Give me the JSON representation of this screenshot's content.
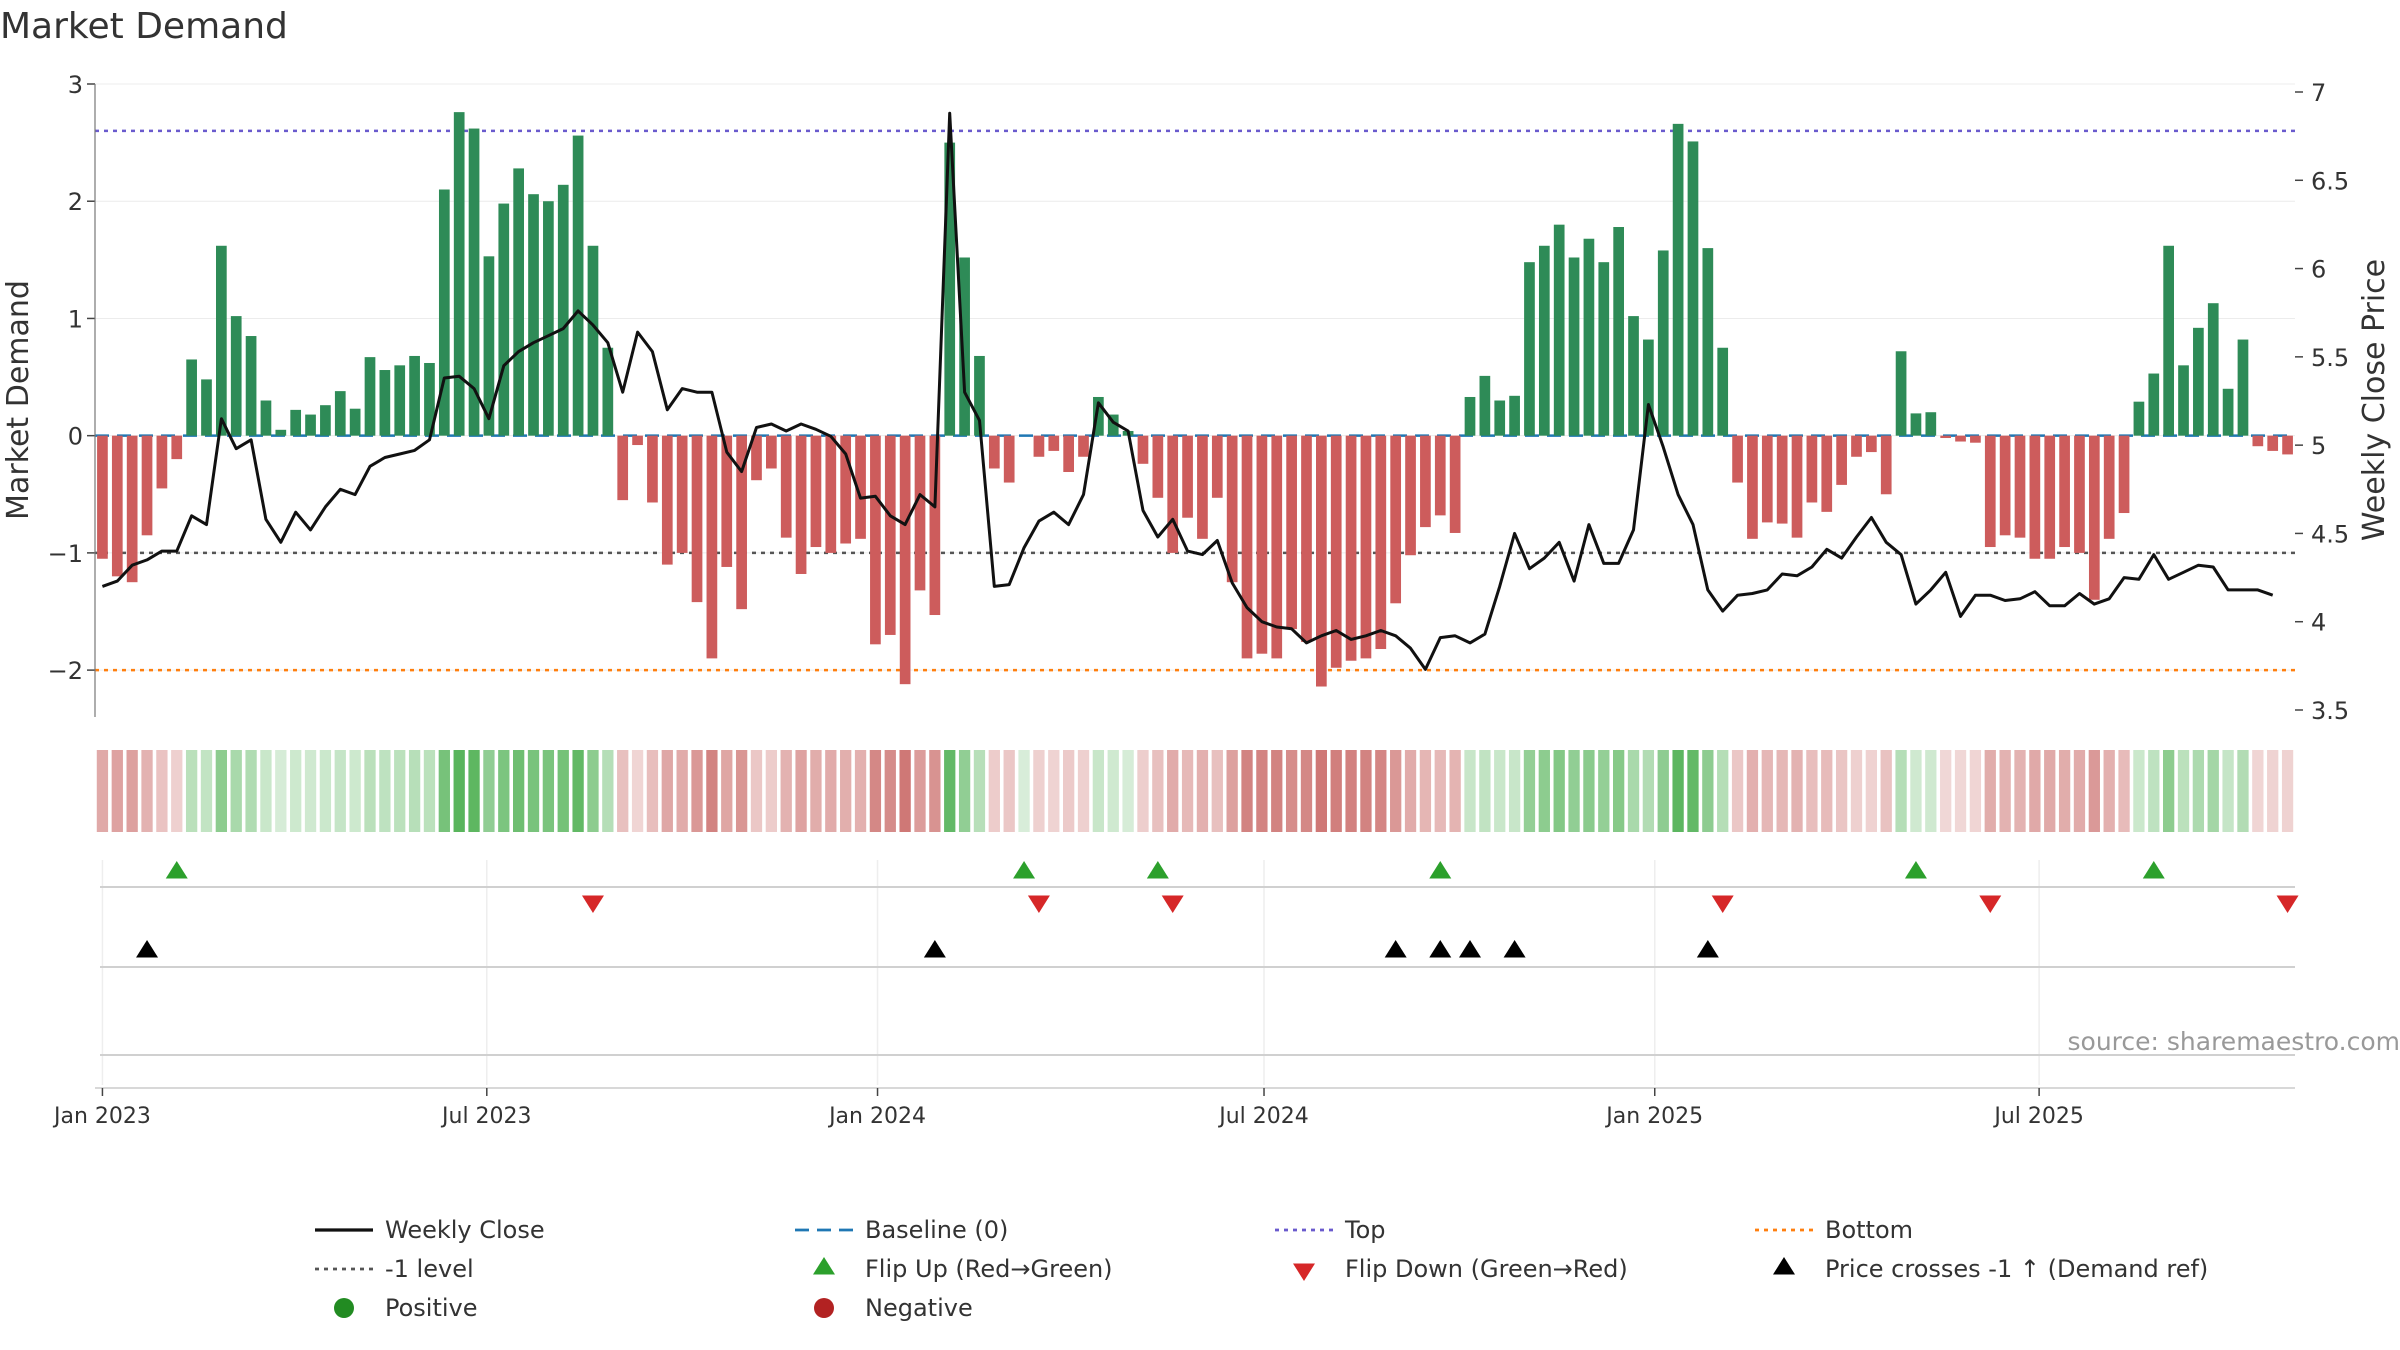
{
  "chart_data": {
    "type": "bar",
    "title": "Market Demand",
    "ylabel": "Market Demand",
    "y2label": "Weekly Close Price",
    "ylim": [
      -2.4,
      3.0
    ],
    "y2lim": [
      3.5,
      7.0
    ],
    "yticks": [
      "3",
      "2",
      "1",
      "0",
      "−1",
      "−2"
    ],
    "y2ticks": [
      "7",
      "6.5",
      "6",
      "5.5",
      "5",
      "4.5",
      "4",
      "3.5"
    ],
    "xtick_labels": [
      "Jan 2023",
      "Jul 2023",
      "Jan 2024",
      "Jul 2024",
      "Jan 2025",
      "Jul 2025"
    ],
    "reference_lines": {
      "baseline": 0,
      "top": 2.6,
      "minus_one_level": -1,
      "bottom": -2
    },
    "start_week": "2023-01-01",
    "demand": [
      -1.05,
      -1.2,
      -1.25,
      -0.85,
      -0.45,
      -0.2,
      0.65,
      0.48,
      1.62,
      1.02,
      0.85,
      0.3,
      0.05,
      0.22,
      0.18,
      0.26,
      0.38,
      0.23,
      0.67,
      0.56,
      0.6,
      0.68,
      0.62,
      2.1,
      2.76,
      2.62,
      1.53,
      1.98,
      2.28,
      2.06,
      2.0,
      2.14,
      2.56,
      1.62,
      0.75,
      -0.55,
      -0.08,
      -0.57,
      -1.1,
      -1.0,
      -1.42,
      -1.9,
      -1.12,
      -1.48,
      -0.38,
      -0.28,
      -0.87,
      -1.18,
      -0.95,
      -1.0,
      -0.92,
      -0.88,
      -1.78,
      -1.7,
      -2.12,
      -1.32,
      -1.53,
      2.5,
      1.52,
      0.68,
      -0.28,
      -0.4,
      0,
      -0.18,
      -0.13,
      -0.31,
      -0.18,
      0.33,
      0.18,
      0.04,
      -0.24,
      -0.53,
      -1.0,
      -0.7,
      -0.88,
      -0.53,
      -1.25,
      -1.9,
      -1.86,
      -1.9,
      -1.65,
      -1.76,
      -2.14,
      -1.98,
      -1.92,
      -1.9,
      -1.82,
      -1.43,
      -1.02,
      -0.78,
      -0.68,
      -0.83,
      0.33,
      0.51,
      0.3,
      0.34,
      1.48,
      1.62,
      1.8,
      1.52,
      1.68,
      1.48,
      1.78,
      1.02,
      0.82,
      1.58,
      2.66,
      2.51,
      1.6,
      0.75,
      -0.4,
      -0.88,
      -0.74,
      -0.75,
      -0.87,
      -0.57,
      -0.65,
      -0.42,
      -0.18,
      -0.14,
      -0.5,
      0.72,
      0.19,
      0.2,
      -0.02,
      -0.05,
      -0.06,
      -0.95,
      -0.85,
      -0.87,
      -1.05,
      -1.05,
      -0.95,
      -1.0,
      -1.4,
      -0.88,
      -0.66,
      0.29,
      0.53,
      1.62,
      0.6,
      0.92,
      1.13,
      0.4,
      0.82,
      -0.09,
      -0.13,
      -0.16
    ],
    "weekly_close": [
      4.2,
      4.23,
      4.32,
      4.35,
      4.4,
      4.4,
      4.6,
      4.55,
      5.15,
      4.98,
      5.03,
      4.58,
      4.45,
      4.62,
      4.52,
      4.65,
      4.75,
      4.72,
      4.88,
      4.93,
      4.95,
      4.97,
      5.03,
      5.38,
      5.39,
      5.32,
      5.15,
      5.45,
      5.53,
      5.58,
      5.62,
      5.66,
      5.76,
      5.68,
      5.58,
      5.3,
      5.64,
      5.53,
      5.2,
      5.32,
      5.3,
      5.3,
      4.96,
      4.85,
      5.1,
      5.12,
      5.08,
      5.12,
      5.09,
      5.05,
      4.95,
      4.7,
      4.71,
      4.6,
      4.55,
      4.72,
      4.65,
      6.88,
      5.3,
      5.14,
      4.2,
      4.21,
      4.42,
      4.57,
      4.62,
      4.55,
      4.72,
      5.24,
      5.13,
      5.08,
      4.63,
      4.48,
      4.58,
      4.4,
      4.38,
      4.46,
      4.22,
      4.08,
      4.0,
      3.97,
      3.96,
      3.88,
      3.92,
      3.95,
      3.9,
      3.92,
      3.95,
      3.92,
      3.85,
      3.73,
      3.91,
      3.92,
      3.88,
      3.93,
      4.2,
      4.5,
      4.3,
      4.36,
      4.45,
      4.23,
      4.55,
      4.33,
      4.33,
      4.52,
      5.23,
      4.99,
      4.72,
      4.55,
      4.18,
      4.06,
      4.15,
      4.16,
      4.18,
      4.27,
      4.26,
      4.31,
      4.41,
      4.36,
      4.48,
      4.59,
      4.45,
      4.38,
      4.1,
      4.18,
      4.28,
      4.03,
      4.15,
      4.15,
      4.12,
      4.13,
      4.17,
      4.09,
      4.09,
      4.16,
      4.1,
      4.13,
      4.25,
      4.24,
      4.38,
      4.24,
      4.28,
      4.32,
      4.31,
      4.18,
      4.18,
      4.18,
      4.15
    ],
    "flip_up_weeks": [
      5,
      62,
      71,
      90,
      122,
      138
    ],
    "flip_down_weeks": [
      33,
      63,
      72,
      109,
      127,
      147
    ],
    "price_cross_weeks": [
      3,
      56,
      87,
      90,
      92,
      95,
      108
    ],
    "legend": {
      "weekly_close": "Weekly Close",
      "baseline": "Baseline (0)",
      "top": "Top",
      "bottom": "Bottom",
      "minus_one": "-1 level",
      "flip_up": "Flip Up (Red→Green)",
      "flip_down": "Flip Down (Green→Red)",
      "price_cross": "Price crosses -1 ↑ (Demand ref)",
      "positive": "Positive",
      "negative": "Negative"
    },
    "source": "source: sharemaestro.com",
    "colors": {
      "positive": "#2e8b57",
      "negative": "#cd5c5c",
      "line": "#111111",
      "baseline": "#1f77b4",
      "top": "#6a5acd",
      "minus_one": "#555555",
      "bottom": "#ff7f0e",
      "flip_up": "#2ca02c",
      "flip_down": "#d62728",
      "cross": "#000000",
      "positive_dot": "#228b22",
      "negative_dot": "#b22222"
    }
  }
}
